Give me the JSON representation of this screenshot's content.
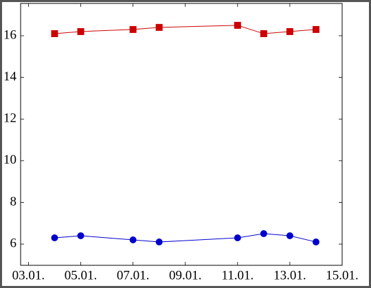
{
  "chart_data": {
    "type": "line",
    "x": [
      4,
      5,
      7,
      8,
      11,
      12,
      13,
      14
    ],
    "series": [
      {
        "color": "#cc0000",
        "marker": "square",
        "values": [
          16.1,
          16.2,
          16.3,
          16.4,
          16.5,
          16.1,
          16.2,
          16.3
        ]
      },
      {
        "color": "#0000cc",
        "marker": "circle",
        "values": [
          6.3,
          6.4,
          6.2,
          6.1,
          6.3,
          6.5,
          6.4,
          6.1
        ]
      }
    ],
    "xlim": [
      2.7,
      15
    ],
    "xticks": [
      {
        "value": 3,
        "label": "03.01."
      },
      {
        "value": 5,
        "label": "05.01."
      },
      {
        "value": 7,
        "label": "07.01."
      },
      {
        "value": 9,
        "label": "09.01."
      },
      {
        "value": 11,
        "label": "11.01."
      },
      {
        "value": 13,
        "label": "13.01."
      },
      {
        "value": 15,
        "label": "15.01."
      }
    ],
    "ylim": [
      4.98,
      17.55
    ],
    "yticks": [
      6,
      8,
      10,
      12,
      14,
      16
    ]
  }
}
